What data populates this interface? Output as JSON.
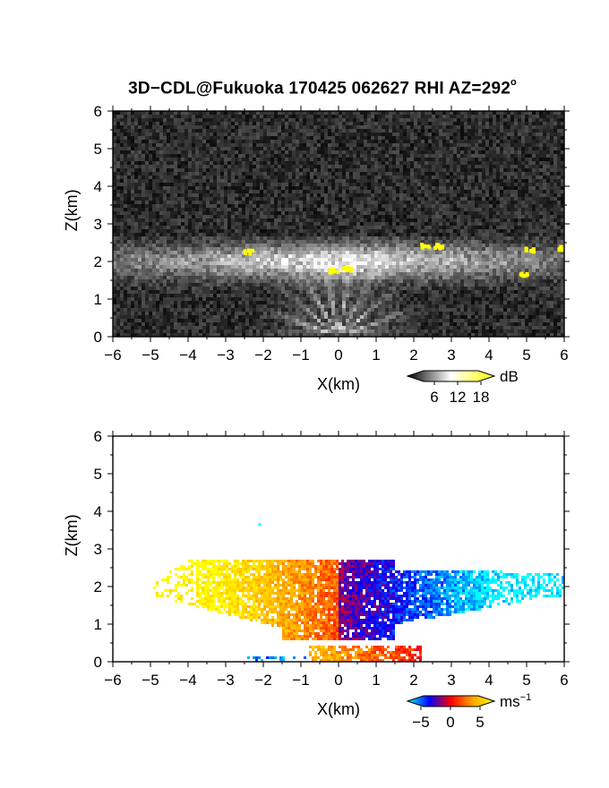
{
  "title_main": "3D−CDL@Fukuoka 170425 062627 RHI AZ=292",
  "title_deg": "o",
  "chart_data": [
    {
      "type": "heatmap",
      "panel": "reflectivity",
      "xlabel": "X(km)",
      "ylabel": "Z(km)",
      "xlim": [
        -6,
        6
      ],
      "ylim": [
        0,
        6
      ],
      "xticks": [
        "−6",
        "−5",
        "−4",
        "−3",
        "−2",
        "−1",
        "0",
        "1",
        "2",
        "3",
        "4",
        "5",
        "6"
      ],
      "yticks": [
        "0",
        "1",
        "2",
        "3",
        "4",
        "5",
        "6"
      ],
      "colorbar": {
        "unit": "dB",
        "ticks": [
          "6",
          "12",
          "18"
        ],
        "range": [
          0,
          20
        ],
        "colors": [
          "#000000",
          "#ffffff",
          "#ffff00"
        ]
      },
      "features": {
        "background_level_dB": 3,
        "cloud_base_km": 1.3,
        "cloud_top_km": 2.7,
        "beam_fan_origin": [
          0,
          0
        ],
        "bright_spots": [
          {
            "x": -2.4,
            "z": 2.25
          },
          {
            "x": -0.1,
            "z": 1.75
          },
          {
            "x": 0.25,
            "z": 1.8
          },
          {
            "x": 2.3,
            "z": 2.4
          },
          {
            "x": 2.65,
            "z": 2.4
          },
          {
            "x": 4.9,
            "z": 1.65
          },
          {
            "x": 5.1,
            "z": 2.3
          },
          {
            "x": 5.95,
            "z": 2.35
          }
        ]
      }
    },
    {
      "type": "heatmap",
      "panel": "doppler_velocity",
      "xlabel": "X(km)",
      "ylabel": "Z(km)",
      "xlim": [
        -6,
        6
      ],
      "ylim": [
        0,
        6
      ],
      "xticks": [
        "−6",
        "−5",
        "−4",
        "−3",
        "−2",
        "−1",
        "0",
        "1",
        "2",
        "3",
        "4",
        "5",
        "6"
      ],
      "yticks": [
        "0",
        "1",
        "2",
        "3",
        "4",
        "5",
        "6"
      ],
      "colorbar": {
        "unit": "ms",
        "unit_exp": "−1",
        "ticks": [
          "−5",
          "0",
          "5"
        ],
        "range": [
          -6,
          6
        ],
        "colors": [
          "#00ffff",
          "#0000ff",
          "#ff0000",
          "#ffa500",
          "#ffff00"
        ]
      },
      "features": {
        "echo_left_edge_km": -4.9,
        "echo_right_edge_km": 6.0,
        "echo_top_km": 2.75,
        "velocity_at_left_edge_ms": 5.5,
        "velocity_at_right_edge_ms": -6
      }
    }
  ]
}
